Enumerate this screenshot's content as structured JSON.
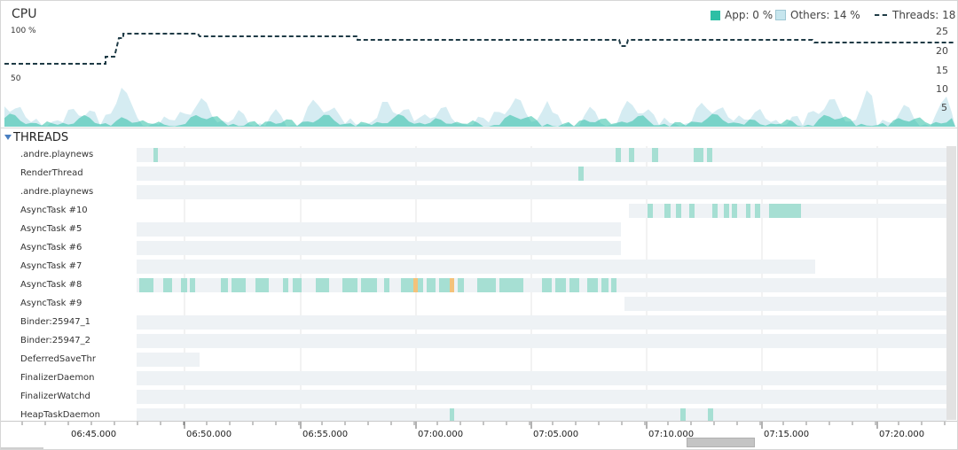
{
  "cpu": {
    "title": "CPU",
    "y_left_labels": [
      "100 %",
      "50"
    ],
    "y_right_labels": [
      "25",
      "20",
      "15",
      "10",
      "5"
    ],
    "legend": {
      "app_label": "App: 0 %",
      "others_label": "Others:  14 %",
      "threads_label": "Threads: 18"
    },
    "colors": {
      "app": "#2ebfa5",
      "others": "#c7e6ee",
      "threads_line": "#1f3b46"
    }
  },
  "threads": {
    "section_title": "THREADS",
    "items": [
      {
        "label": ".andre.playnews"
      },
      {
        "label": "RenderThread"
      },
      {
        "label": ".andre.playnews"
      },
      {
        "label": "AsyncTask #10"
      },
      {
        "label": "AsyncTask #5"
      },
      {
        "label": "AsyncTask #6"
      },
      {
        "label": "AsyncTask #7"
      },
      {
        "label": "AsyncTask #8"
      },
      {
        "label": "AsyncTask #9"
      },
      {
        "label": "Binder:25947_1"
      },
      {
        "label": "Binder:25947_2"
      },
      {
        "label": "DeferredSaveThr"
      },
      {
        "label": "FinalizerDaemon"
      },
      {
        "label": "FinalizerWatchd"
      },
      {
        "label": "HeapTaskDaemon"
      }
    ],
    "colors": {
      "track": "#eef2f5",
      "running": "#a6dfd3",
      "runnable": "#f4c27a"
    }
  },
  "timeline": {
    "ticks": [
      "06:45.000",
      "06:50.000",
      "06:55.000",
      "07:00.000",
      "07:05.000",
      "07:10.000",
      "07:15.000",
      "07:20.000"
    ]
  }
}
